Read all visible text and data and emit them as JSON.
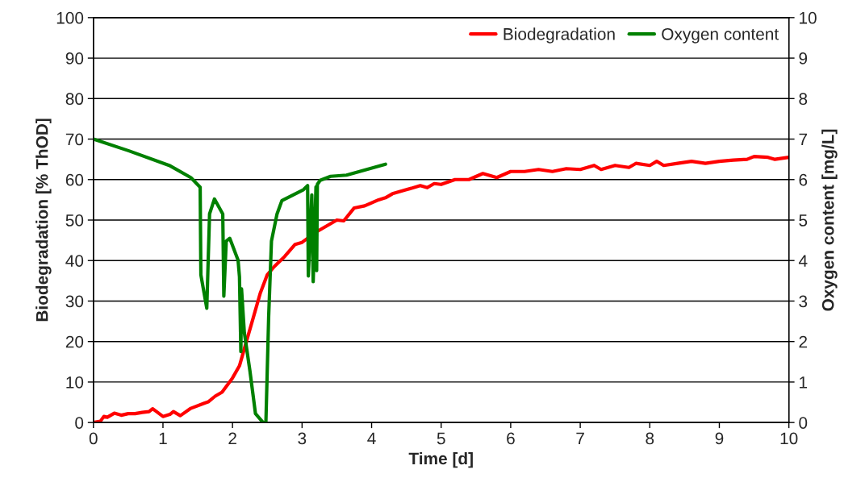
{
  "chart_data": {
    "type": "line",
    "xlabel": "Time [d]",
    "ylabel": "Biodegradation [% ThOD]",
    "y2label": "Oxygen content [mg/L]",
    "xlim": [
      0,
      10
    ],
    "xticks": [
      0,
      1,
      2,
      3,
      4,
      5,
      6,
      7,
      8,
      9,
      10
    ],
    "ylim": [
      0,
      100
    ],
    "yticks": [
      0,
      10,
      20,
      30,
      40,
      50,
      60,
      70,
      80,
      90,
      100
    ],
    "y2lim": [
      0,
      10
    ],
    "y2ticks": [
      0,
      1,
      2,
      3,
      4,
      5,
      6,
      7,
      8,
      9,
      10
    ],
    "grid": "y",
    "legend": "top right",
    "marker": "none",
    "line_style": "solid",
    "series": [
      {
        "name": "Biodegradation",
        "color": "#ff0000",
        "x": [
          0,
          0.1,
          0.15,
          0.2,
          0.3,
          0.4,
          0.5,
          0.6,
          0.7,
          0.8,
          0.85,
          0.9,
          1.0,
          1.1,
          1.15,
          1.25,
          1.4,
          1.6,
          1.65,
          1.75,
          1.85,
          2.0,
          2.1,
          2.2,
          2.3,
          2.4,
          2.5,
          2.6,
          2.75,
          2.9,
          3.0,
          3.2,
          3.4,
          3.5,
          3.6,
          3.75,
          3.9,
          4.1,
          4.2,
          4.3,
          4.5,
          4.7,
          4.8,
          4.9,
          5.0,
          5.2,
          5.4,
          5.6,
          5.8,
          6.0,
          6.2,
          6.4,
          6.6,
          6.8,
          7.0,
          7.2,
          7.3,
          7.5,
          7.7,
          7.8,
          8.0,
          8.1,
          8.2,
          8.4,
          8.6,
          8.8,
          9.0,
          9.2,
          9.4,
          9.5,
          9.7,
          9.8,
          10
        ],
        "values": [
          0,
          0.3,
          1.5,
          1.3,
          2.3,
          1.8,
          2.2,
          2.2,
          2.5,
          2.7,
          3.4,
          2.8,
          1.5,
          2.0,
          2.7,
          1.7,
          3.5,
          4.8,
          5.1,
          6.5,
          7.5,
          11,
          14,
          20,
          26,
          32,
          36.5,
          38.5,
          41,
          44,
          44.5,
          47,
          49,
          50,
          49.8,
          53,
          53.5,
          55,
          55.5,
          56.5,
          57.5,
          58.5,
          58,
          59,
          58.8,
          60,
          60,
          61.5,
          60.5,
          62,
          62,
          62.5,
          62,
          62.7,
          62.5,
          63.5,
          62.5,
          63.5,
          63,
          64,
          63.5,
          64.5,
          63.5,
          64,
          64.5,
          64,
          64.5,
          64.8,
          65,
          65.7,
          65.5,
          65,
          65.5
        ]
      },
      {
        "name": "Oxygen content",
        "color": "#008000",
        "axis": "y2",
        "x": [
          0,
          0.51,
          1.09,
          1.4,
          1.535,
          1.545,
          1.63,
          1.67,
          1.74,
          1.86,
          1.875,
          1.91,
          1.96,
          2.08,
          2.1,
          2.12,
          2.13,
          2.17,
          2.25,
          2.33,
          2.44,
          2.48,
          2.52,
          2.56,
          2.64,
          2.71,
          3.02,
          3.08,
          3.09,
          3.14,
          3.16,
          3.2,
          3.21,
          3.22,
          3.26,
          3.41,
          3.64,
          4.2
        ],
        "values": [
          7.0,
          6.71,
          6.35,
          6.05,
          5.81,
          3.65,
          2.82,
          5.15,
          5.52,
          5.15,
          3.12,
          4.48,
          4.55,
          4.01,
          3.6,
          1.75,
          3.3,
          2.22,
          1.28,
          0.22,
          0.0,
          0.0,
          2.62,
          4.48,
          5.15,
          5.48,
          5.75,
          5.85,
          3.62,
          5.62,
          3.48,
          5.82,
          3.75,
          5.88,
          5.98,
          6.08,
          6.11,
          6.38
        ]
      }
    ]
  }
}
